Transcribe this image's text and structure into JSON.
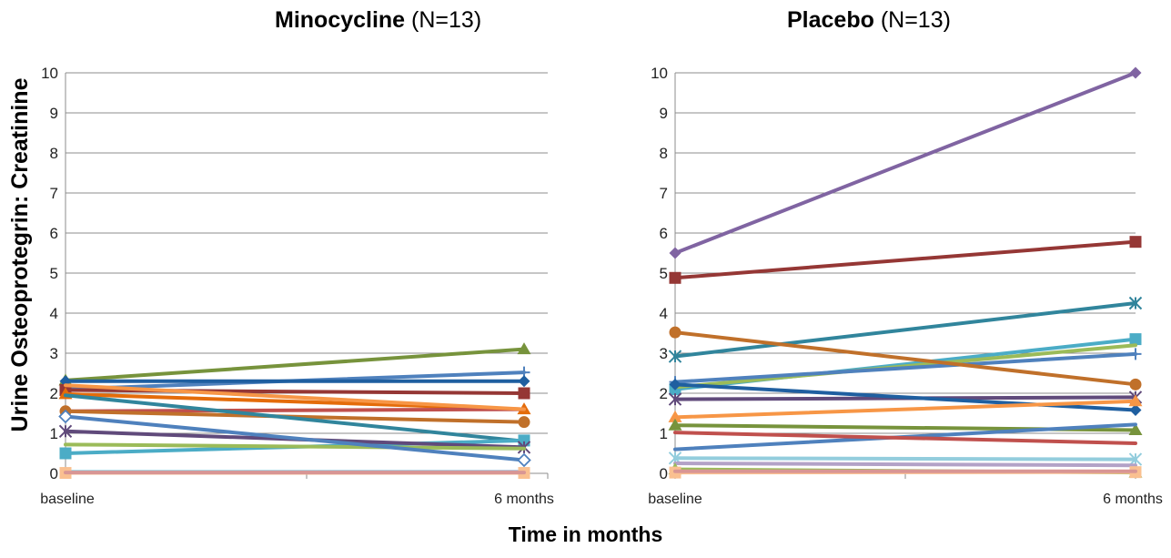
{
  "figure": {
    "ylabel": "Urine  Osteoprotegrin: Creatinine",
    "xlabel": "Time in months"
  },
  "chart_data": [
    {
      "type": "line",
      "title_bold": "Minocycline",
      "title_rest": " (N=13)",
      "categories": [
        "baseline",
        "6 months"
      ],
      "ylim": [
        0,
        10
      ],
      "yticks": [
        "0",
        "1",
        "2",
        "3",
        "4",
        "5",
        "6",
        "7",
        "8",
        "9",
        "10"
      ],
      "grid": true,
      "series": [
        {
          "color": "#77933C",
          "marker": "triangle",
          "values": [
            2.32,
            3.1
          ]
        },
        {
          "color": "#4F81BD",
          "marker": "plus",
          "values": [
            2.1,
            2.52
          ]
        },
        {
          "color": "#1F5FA0",
          "marker": "diamond",
          "values": [
            2.3,
            2.3
          ]
        },
        {
          "color": "#953735",
          "marker": "square",
          "values": [
            2.08,
            2.0
          ]
        },
        {
          "color": "#E46C0A",
          "marker": "triangle",
          "values": [
            1.98,
            1.6
          ]
        },
        {
          "color": "#C0504D",
          "marker": "none",
          "values": [
            1.55,
            1.6
          ]
        },
        {
          "color": "#C0702A",
          "marker": "circle",
          "values": [
            1.55,
            1.28
          ]
        },
        {
          "color": "#31859C",
          "marker": "none",
          "values": [
            1.95,
            0.8
          ]
        },
        {
          "color": "#4BACC6",
          "marker": "square",
          "values": [
            0.5,
            0.82
          ]
        },
        {
          "color": "#604A7B",
          "marker": "x",
          "values": [
            1.05,
            0.65
          ]
        },
        {
          "color": "#9BBB59",
          "marker": "none",
          "values": [
            0.72,
            0.62
          ]
        },
        {
          "color": "#4F81BD",
          "marker": "open-diamond",
          "values": [
            1.42,
            0.33
          ]
        },
        {
          "color": "#F79646",
          "marker": "none",
          "values": [
            2.2,
            1.6
          ]
        },
        {
          "color": "#93CDDD",
          "marker": "none",
          "values": [
            0.04,
            0.04
          ]
        },
        {
          "color": "#B3A2C7",
          "marker": "none",
          "values": [
            0.02,
            0.03
          ]
        },
        {
          "color": "#FAC090",
          "marker": "square",
          "values": [
            0.01,
            0.01
          ]
        },
        {
          "color": "#D99694",
          "marker": "none",
          "values": [
            0.02,
            0.02
          ]
        }
      ]
    },
    {
      "type": "line",
      "title_bold": "Placebo",
      "title_rest": " (N=13)",
      "categories": [
        "baseline",
        "6 months"
      ],
      "ylim": [
        0,
        10
      ],
      "yticks": [
        "0",
        "1",
        "2",
        "3",
        "4",
        "5",
        "6",
        "7",
        "8",
        "9",
        "10"
      ],
      "grid": true,
      "series": [
        {
          "color": "#8064A2",
          "marker": "diamond",
          "values": [
            5.5,
            10.0
          ]
        },
        {
          "color": "#953735",
          "marker": "square",
          "values": [
            4.88,
            5.78
          ]
        },
        {
          "color": "#31859C",
          "marker": "x",
          "values": [
            2.92,
            4.25
          ]
        },
        {
          "color": "#4BACC6",
          "marker": "square",
          "values": [
            2.1,
            3.35
          ]
        },
        {
          "color": "#9BBB59",
          "marker": "none",
          "values": [
            2.15,
            3.2
          ]
        },
        {
          "color": "#4F81BD",
          "marker": "plus",
          "values": [
            2.28,
            2.98
          ]
        },
        {
          "color": "#C0702A",
          "marker": "circle",
          "values": [
            3.52,
            2.22
          ]
        },
        {
          "color": "#604A7B",
          "marker": "x",
          "values": [
            1.85,
            1.9
          ]
        },
        {
          "color": "#1F5FA0",
          "marker": "diamond",
          "values": [
            2.22,
            1.58
          ]
        },
        {
          "color": "#F79646",
          "marker": "triangle",
          "values": [
            1.4,
            1.8
          ]
        },
        {
          "color": "#77933C",
          "marker": "triangle",
          "values": [
            1.2,
            1.08
          ]
        },
        {
          "color": "#4F81BD",
          "marker": "none",
          "values": [
            0.6,
            1.22
          ]
        },
        {
          "color": "#C0504D",
          "marker": "none",
          "values": [
            1.02,
            0.75
          ]
        },
        {
          "color": "#93CDDD",
          "marker": "x",
          "values": [
            0.38,
            0.35
          ]
        },
        {
          "color": "#B3A2C7",
          "marker": "none",
          "values": [
            0.25,
            0.2
          ]
        },
        {
          "color": "#9BBB59",
          "marker": "triangle",
          "values": [
            0.1,
            0.02
          ]
        },
        {
          "color": "#FAC090",
          "marker": "square",
          "values": [
            0.02,
            0.03
          ]
        },
        {
          "color": "#D99694",
          "marker": "none",
          "values": [
            0.05,
            0.05
          ]
        }
      ]
    }
  ]
}
